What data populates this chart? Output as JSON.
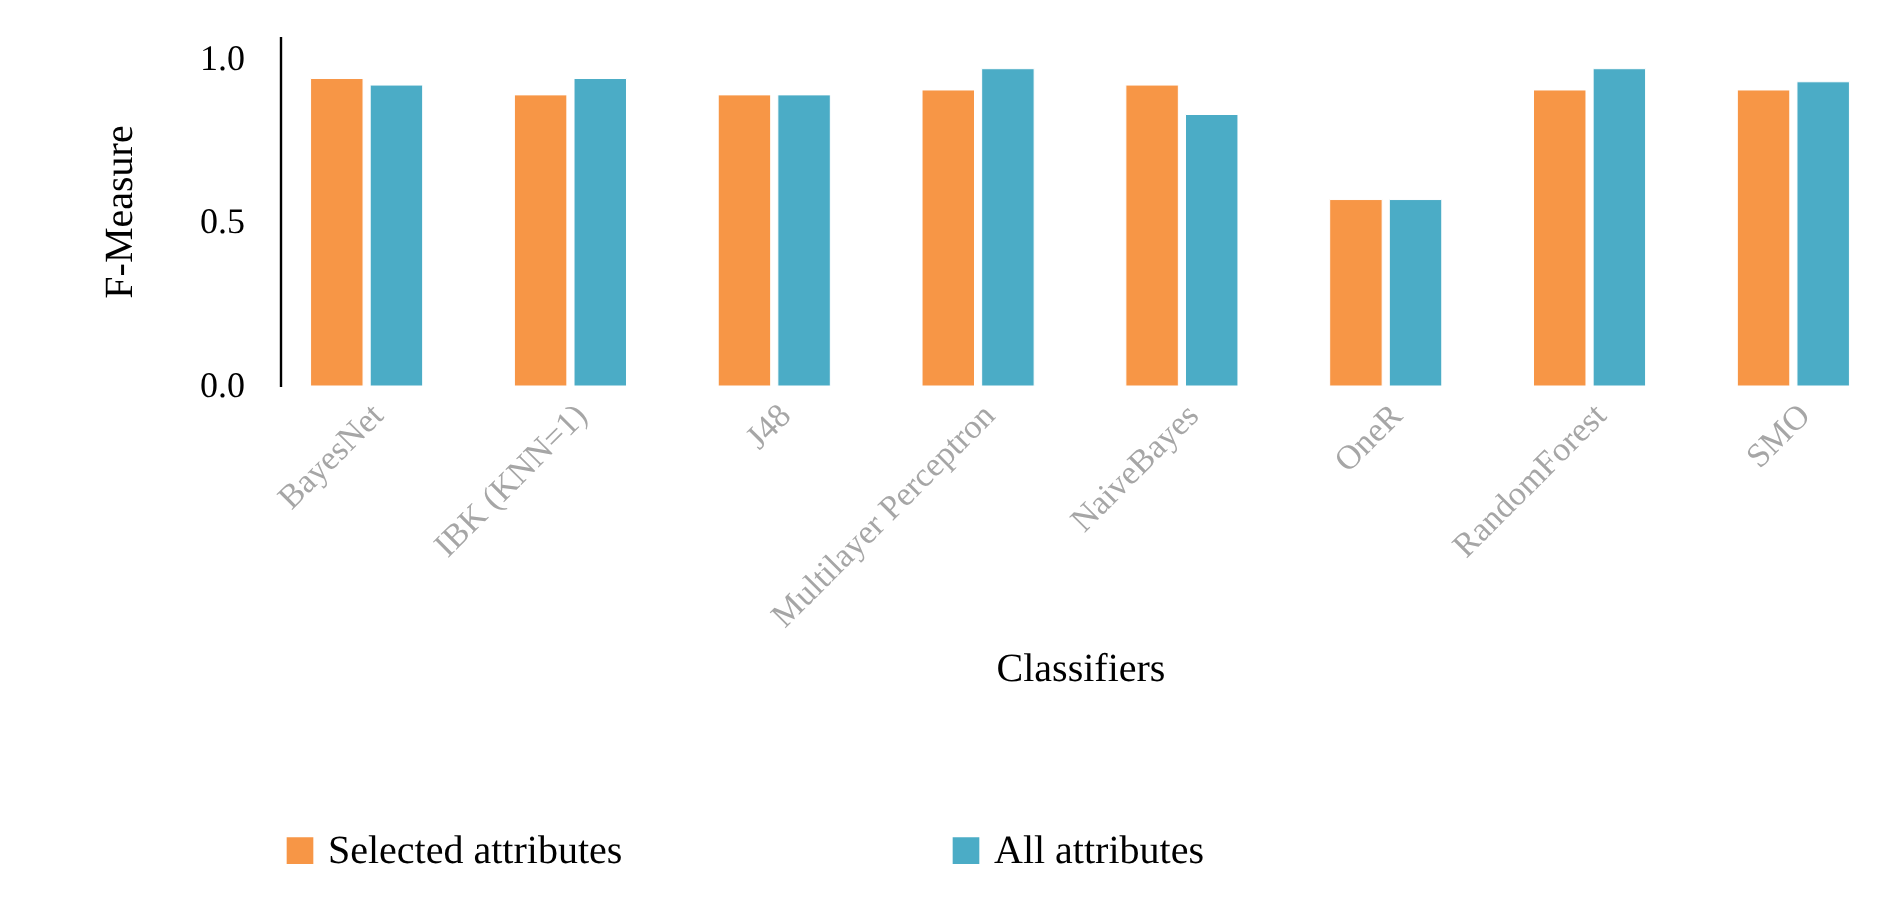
{
  "chart_data": {
    "type": "bar",
    "xlabel": "Classifiers",
    "ylabel": "F-Measure",
    "categories": [
      "BayesNet",
      "IBK (KNN=1)",
      "J48",
      "Multilayer Perceptron",
      "NaiveBayes",
      "OneR",
      "RandomForest",
      "SMO"
    ],
    "series": [
      {
        "name": "Selected attributes",
        "color": "#f79646",
        "values": [
          0.94,
          0.89,
          0.89,
          0.905,
          0.92,
          0.57,
          0.905,
          0.905
        ]
      },
      {
        "name": "All attributes",
        "color": "#4bacc6",
        "values": [
          0.92,
          0.94,
          0.89,
          0.97,
          0.83,
          0.57,
          0.97,
          0.93
        ]
      }
    ],
    "ylim": [
      0,
      1.07
    ],
    "yticks": [
      {
        "value": 0,
        "label": "0.0"
      },
      {
        "value": 0.5,
        "label": "0.5"
      },
      {
        "value": 1,
        "label": "1.0"
      }
    ],
    "legend": "bottom"
  }
}
